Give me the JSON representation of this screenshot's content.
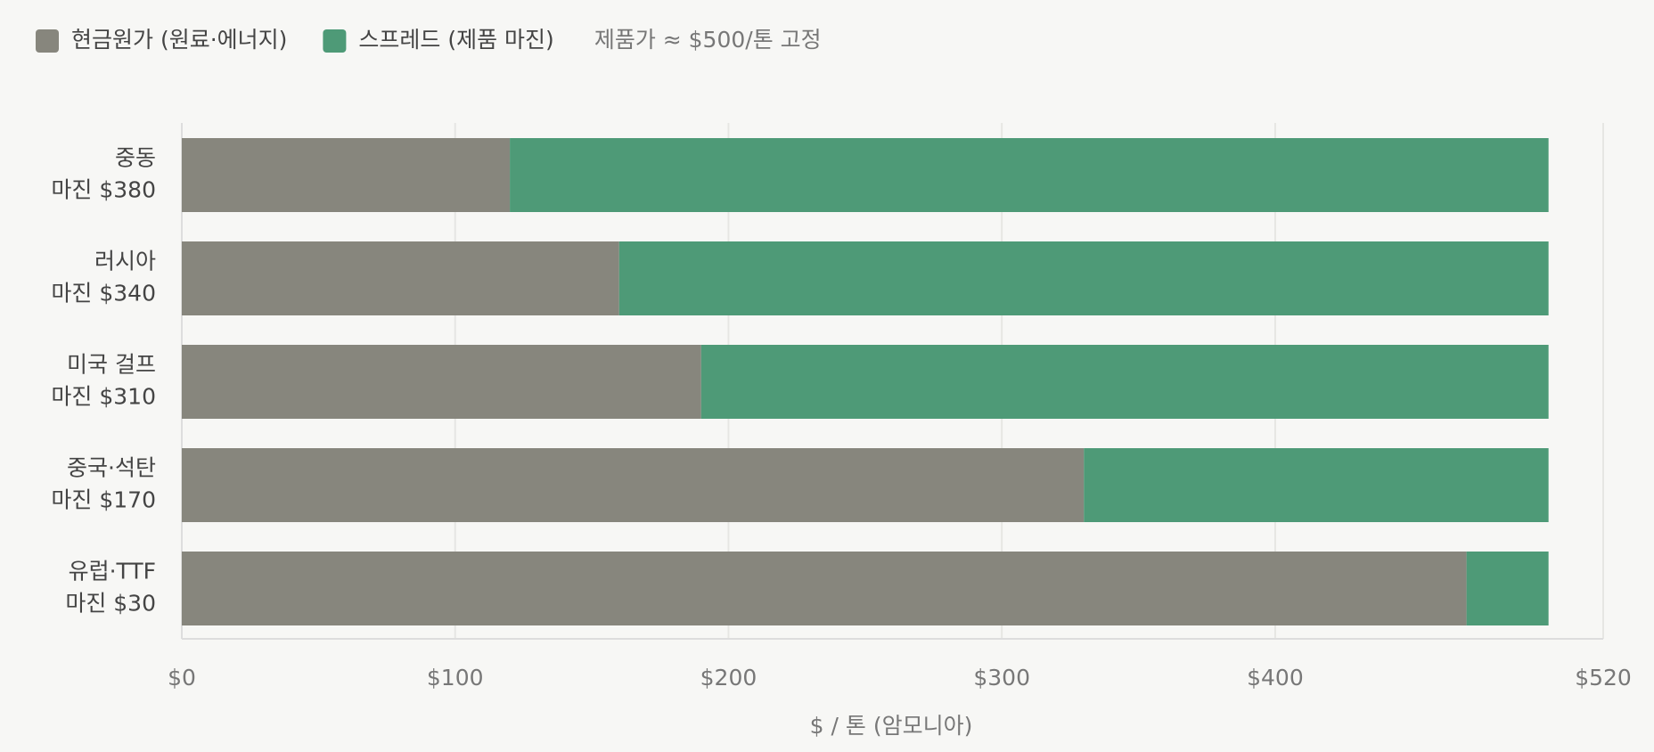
{
  "chart_data": {
    "type": "stacked_barh",
    "annotation": "제품가 ≈ $500/톤 고정",
    "x_label": "$ / 톤 (암모니아)",
    "categories": [
      "중동",
      "러시아",
      "미국 걸프",
      "중국·석탄",
      "유럽·TTF"
    ],
    "series": [
      {
        "name": "현금원가 (원료·에너지)",
        "color": "#87867d",
        "values": [
          120,
          160,
          190,
          330,
          470
        ]
      },
      {
        "name": "스프레드 (제품 마진)",
        "color": "#4e9a77",
        "values": [
          380,
          340,
          310,
          170,
          30
        ],
        "value_labels": [
          "마진 $380",
          "마진 $340",
          "마진 $310",
          "마진 $170",
          "마진 $30"
        ]
      }
    ],
    "xlim": [
      0,
      520
    ],
    "xticks": [
      {
        "value": 0,
        "label": "$0"
      },
      {
        "value": 100,
        "label": "$100"
      },
      {
        "value": 200,
        "label": "$200"
      },
      {
        "value": 300,
        "label": "$300"
      },
      {
        "value": 400,
        "label": "$400"
      },
      {
        "value": 520,
        "label": "$520"
      }
    ],
    "grid": true
  }
}
